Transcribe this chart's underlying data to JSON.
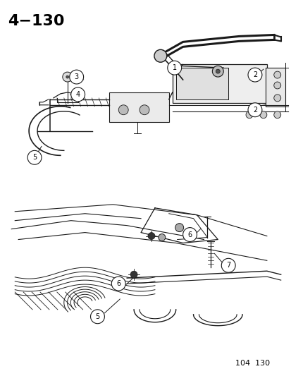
{
  "title": "4−130",
  "footer": "104  130",
  "background_color": "#ffffff",
  "line_color": "#1a1a1a",
  "callout_circle_edge": "#1a1a1a",
  "title_fontsize": 16,
  "footer_fontsize": 8,
  "callout_fontsize": 7,
  "fig_width": 4.14,
  "fig_height": 5.33,
  "dpi": 100
}
